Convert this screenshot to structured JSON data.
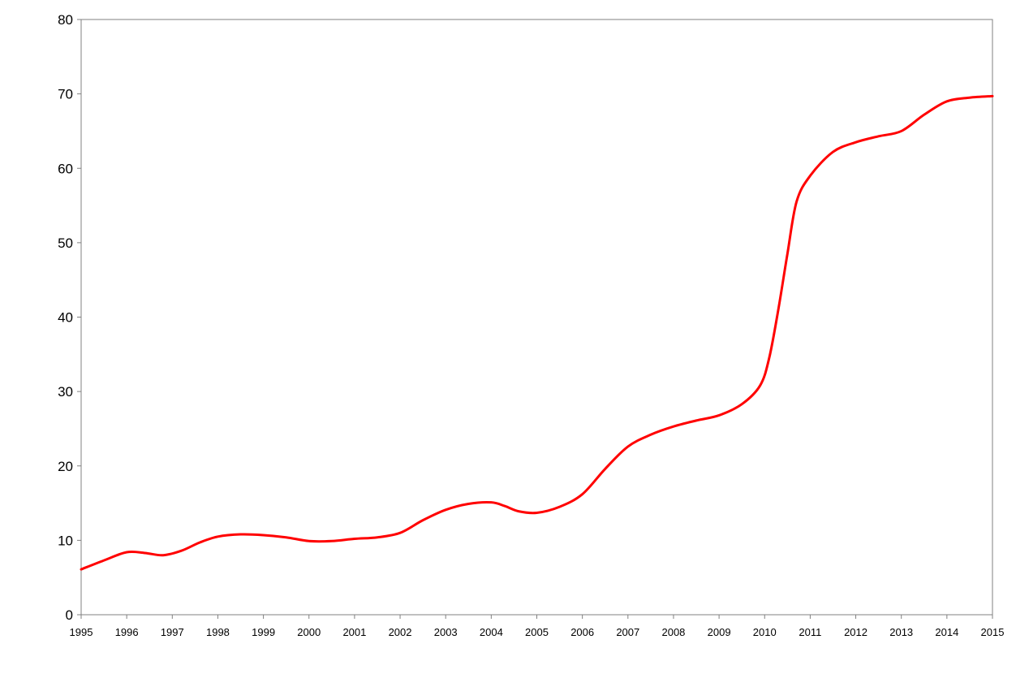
{
  "chart_data": {
    "type": "line",
    "title": "",
    "xlabel": "",
    "ylabel": "",
    "xlim": [
      1995,
      2015
    ],
    "ylim": [
      0,
      80
    ],
    "y_ticks": [
      0,
      10,
      20,
      30,
      40,
      50,
      60,
      70,
      80
    ],
    "x_ticks": [
      1995,
      1996,
      1997,
      1998,
      1999,
      2000,
      2001,
      2002,
      2003,
      2004,
      2005,
      2006,
      2007,
      2008,
      2009,
      2010,
      2011,
      2012,
      2013,
      2014,
      2015
    ],
    "grid": false,
    "legend": "none",
    "series": [
      {
        "color": "#ff0000",
        "x": [
          1995,
          1995.5,
          1996,
          1996.4,
          1996.8,
          1997.2,
          1997.6,
          1998,
          1998.5,
          1999,
          1999.5,
          2000,
          2000.5,
          2001,
          2001.5,
          2002,
          2002.5,
          2003,
          2003.5,
          2004,
          2004.3,
          2004.6,
          2005,
          2005.5,
          2006,
          2006.5,
          2007,
          2007.5,
          2008,
          2008.5,
          2009,
          2009.5,
          2009.9,
          2010.1,
          2010.3,
          2010.5,
          2010.7,
          2011,
          2011.5,
          2012,
          2012.5,
          2013,
          2013.5,
          2014,
          2014.5,
          2015
        ],
        "y": [
          6.1,
          7.3,
          8.4,
          8.3,
          8.0,
          8.6,
          9.7,
          10.5,
          10.8,
          10.7,
          10.4,
          9.9,
          9.9,
          10.2,
          10.4,
          11.0,
          12.7,
          14.1,
          14.9,
          15.1,
          14.6,
          13.9,
          13.7,
          14.5,
          16.2,
          19.6,
          22.6,
          24.2,
          25.3,
          26.1,
          26.8,
          28.3,
          30.8,
          34.5,
          41.0,
          48.5,
          55.5,
          59.0,
          62.2,
          63.5,
          64.3,
          65.0,
          67.2,
          69.0,
          69.5,
          69.7
        ]
      }
    ]
  }
}
